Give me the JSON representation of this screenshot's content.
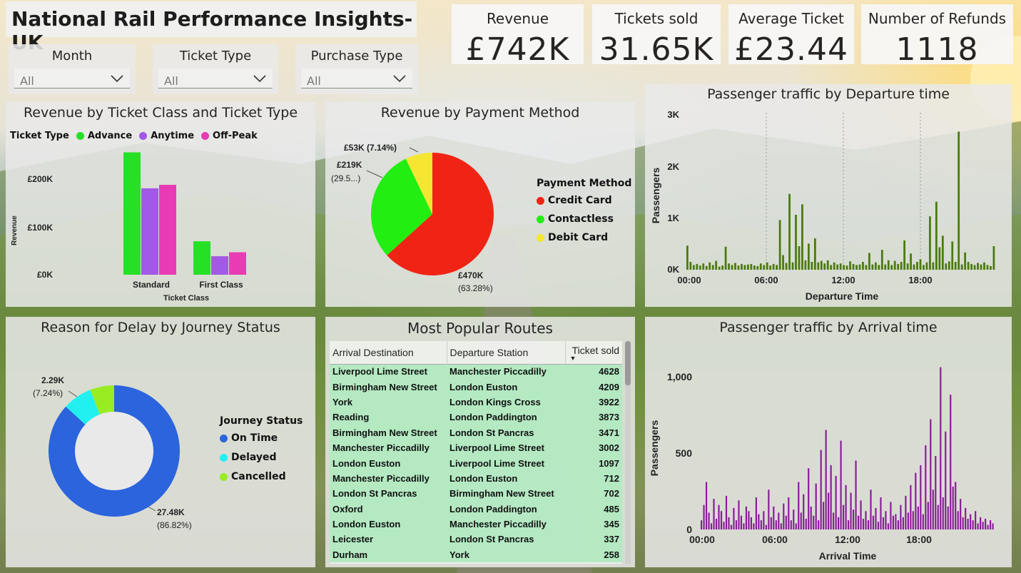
{
  "title": "National Rail Performance Insights- UK",
  "kpis": [
    {
      "label": "Revenue",
      "value": "£742K"
    },
    {
      "label": "Tickets sold",
      "value": "31.65K"
    },
    {
      "label": "Average Ticket",
      "value": "£23.44"
    },
    {
      "label": "Number of Refunds",
      "value": "1118"
    }
  ],
  "slicers": [
    {
      "label": "Month",
      "value": "All"
    },
    {
      "label": "Ticket Type",
      "value": "All"
    },
    {
      "label": "Purchase Type",
      "value": "All"
    }
  ],
  "colors": {
    "advance": "#26e026",
    "anytime": "#a259e6",
    "offpeak": "#e83cb4",
    "credit": "#f02414",
    "contactless": "#22ee11",
    "debit": "#f5e632",
    "ontime": "#2b64dd",
    "delayed": "#22f0f0",
    "cancelled": "#99ec22",
    "departure_bars": "#4a7a0e",
    "arrival_bars": "#8a1a9a"
  },
  "charts": {
    "ticket_class": {
      "title": "Revenue by Ticket Class and Ticket Type",
      "legend_title": "Ticket Type",
      "legend": [
        "Advance",
        "Anytime",
        "Off-Peak"
      ],
      "y_ticks": [
        "£200K",
        "£100K",
        "£0K"
      ],
      "ylabel": "Revenue",
      "xlabel": "Ticket Class"
    },
    "payment": {
      "title": "Revenue by Payment Method",
      "legend_title": "Payment Method",
      "legend": [
        "Credit Card",
        "Contactless",
        "Debit Card"
      ],
      "labels": {
        "credit_1": "£470K",
        "credit_2": "(63.28%)",
        "contactless_1": "£219K",
        "contactless_2": "(29.5...)",
        "debit": "£53K (7.14%)"
      }
    },
    "departure": {
      "title": "Passenger traffic by Departure time",
      "y_ticks": [
        "3K",
        "2K",
        "1K",
        "0K"
      ],
      "x_ticks": [
        "00:00",
        "06:00",
        "12:00",
        "18:00"
      ],
      "ylabel": "Passengers",
      "xlabel": "Departure Time"
    },
    "delay": {
      "title": "Reason for Delay by Journey Status",
      "legend_title": "Journey Status",
      "legend": [
        "On Time",
        "Delayed",
        "Cancelled"
      ],
      "labels": {
        "ontime_1": "27.48K",
        "ontime_2": "(86.82%)",
        "delayed_1": "2.29K",
        "delayed_2": "(7.24%)"
      }
    },
    "routes": {
      "title": "Most Popular Routes",
      "columns": [
        "Arrival Destination",
        "Departure Station",
        "Ticket sold"
      ],
      "rows": [
        [
          "Liverpool Lime Street",
          "Manchester Piccadilly",
          "4628"
        ],
        [
          "Birmingham New Street",
          "London Euston",
          "4209"
        ],
        [
          "York",
          "London Kings Cross",
          "3922"
        ],
        [
          "Reading",
          "London Paddington",
          "3873"
        ],
        [
          "Birmingham New Street",
          "London St Pancras",
          "3471"
        ],
        [
          "Manchester Piccadilly",
          "Liverpool Lime Street",
          "3002"
        ],
        [
          "London Euston",
          "Liverpool Lime Street",
          "1097"
        ],
        [
          "Manchester Piccadilly",
          "London Euston",
          "712"
        ],
        [
          "London St Pancras",
          "Birmingham New Street",
          "702"
        ],
        [
          "Oxford",
          "London Paddington",
          "485"
        ],
        [
          "London Euston",
          "Manchester Piccadilly",
          "345"
        ],
        [
          "Leicester",
          "London St Pancras",
          "337"
        ],
        [
          "Durham",
          "York",
          "258"
        ]
      ]
    },
    "arrival": {
      "title": "Passenger traffic by Arrival time",
      "y_ticks": [
        "1,000",
        "500",
        "0"
      ],
      "x_ticks": [
        "00:00",
        "06:00",
        "12:00",
        "18:00"
      ],
      "ylabel": "Passengers",
      "xlabel": "Arrival Time"
    }
  },
  "chart_data": [
    {
      "type": "bar",
      "title": "Revenue by Ticket Class and Ticket Type",
      "categories": [
        "Standard",
        "First Class"
      ],
      "series": [
        {
          "name": "Advance",
          "values": [
            245000,
            67000
          ]
        },
        {
          "name": "Anytime",
          "values": [
            173000,
            37000
          ]
        },
        {
          "name": "Off-Peak",
          "values": [
            180000,
            45000
          ]
        }
      ],
      "ylim": [
        0,
        260000
      ],
      "xlabel": "Ticket Class",
      "ylabel": "Revenue"
    },
    {
      "type": "pie",
      "title": "Revenue by Payment Method",
      "categories": [
        "Credit Card",
        "Contactless",
        "Debit Card"
      ],
      "values": [
        63.28,
        29.58,
        7.14
      ]
    },
    {
      "type": "bar",
      "title": "Passenger traffic by Departure time",
      "values": [
        460,
        150,
        90,
        110,
        80,
        120,
        70,
        140,
        90,
        170,
        60,
        80,
        440,
        120,
        90,
        130,
        80,
        110,
        90,
        100,
        110,
        80,
        70,
        120,
        90,
        140,
        80,
        110,
        90,
        950,
        280,
        130,
        1450,
        140,
        1050,
        450,
        1250,
        180,
        500,
        150,
        600,
        140,
        170,
        120,
        180,
        90,
        140,
        100,
        120,
        90,
        80,
        160,
        110,
        90,
        100,
        150,
        90,
        320,
        100,
        140,
        90,
        380,
        100,
        180,
        90,
        170,
        110,
        150,
        560,
        120,
        310,
        100,
        150,
        200,
        90,
        140,
        1020,
        140,
        1300,
        430,
        650,
        120,
        160,
        540,
        150,
        2640,
        100,
        330,
        150,
        110,
        90,
        130,
        100,
        140,
        90,
        70,
        450
      ],
      "x_ticks": [
        "00:00",
        "06:00",
        "12:00",
        "18:00"
      ],
      "ylim": [
        0,
        3000
      ],
      "xlabel": "Departure Time",
      "ylabel": "Passengers"
    },
    {
      "type": "pie",
      "title": "Reason for Delay by Journey Status",
      "categories": [
        "On Time",
        "Delayed",
        "Cancelled"
      ],
      "values": [
        86.82,
        7.24,
        5.94
      ]
    },
    {
      "type": "table",
      "title": "Most Popular Routes",
      "columns": [
        "Arrival Destination",
        "Departure Station",
        "Ticket sold"
      ],
      "values": [
        4628,
        4209,
        3922,
        3873,
        3471,
        3002,
        1097,
        712,
        702,
        485,
        345,
        337,
        258
      ]
    },
    {
      "type": "bar",
      "title": "Passenger traffic by Arrival time",
      "values": [
        60,
        160,
        310,
        110,
        40,
        200,
        70,
        160,
        120,
        50,
        220,
        80,
        30,
        140,
        60,
        190,
        90,
        40,
        150,
        120,
        80,
        40,
        210,
        100,
        60,
        120,
        30,
        260,
        80,
        150,
        60,
        110,
        40,
        170,
        90,
        210,
        60,
        130,
        40,
        310,
        110,
        230,
        70,
        400,
        150,
        90,
        300,
        60,
        520,
        180,
        650,
        240,
        420,
        110,
        350,
        80,
        580,
        160,
        290,
        60,
        240,
        130,
        450,
        90,
        190,
        70,
        120,
        60,
        260,
        90,
        140,
        50,
        210,
        80,
        120,
        40,
        180,
        90,
        100,
        60,
        160,
        80,
        220,
        110,
        290,
        120,
        370,
        150,
        420,
        100,
        550,
        180,
        720,
        260,
        480,
        160,
        1060,
        210,
        640,
        150,
        880,
        280,
        310,
        120,
        200,
        80,
        140,
        70,
        100,
        60,
        120,
        40,
        80,
        50,
        70,
        30,
        60,
        40
      ],
      "x_ticks": [
        "00:00",
        "06:00",
        "12:00",
        "18:00"
      ],
      "ylim": [
        0,
        1100
      ],
      "xlabel": "Arrival Time",
      "ylabel": "Passengers"
    }
  ]
}
